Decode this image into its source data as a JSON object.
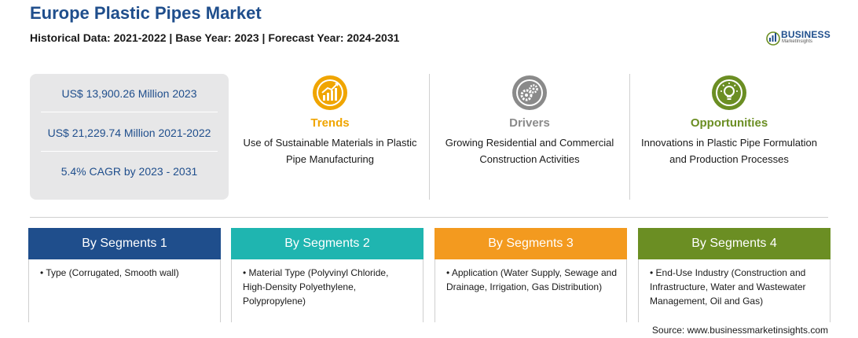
{
  "header": {
    "title": "Europe Plastic Pipes Market",
    "subtitle": "Historical Data: 2021-2022 | Base Year: 2023 | Forecast Year: 2024-2031"
  },
  "logo": {
    "name": "BUSINESS",
    "tagline": "MarketInsights"
  },
  "stats": [
    "US$ 13,900.26 Million 2023",
    "US$ 21,229.74 Million 2021-2022",
    "5.4% CAGR by 2023 - 2031"
  ],
  "columns": [
    {
      "heading": "Trends",
      "text": "Use of Sustainable Materials in Plastic Pipe Manufacturing",
      "color": "#f0a500",
      "icon": "chart-growth-icon"
    },
    {
      "heading": "Drivers",
      "text": "Growing Residential and Commercial Construction Activities",
      "color": "#8a8a8a",
      "icon": "gears-icon"
    },
    {
      "heading": "Opportunities",
      "text": "Innovations in Plastic Pipe Formulation and Production Processes",
      "color": "#6b8e23",
      "icon": "lightbulb-icon"
    }
  ],
  "segments": [
    {
      "heading": "By Segments 1",
      "color": "#1f4e8c",
      "bullet": "•",
      "text": "Type (Corrugated, Smooth wall)"
    },
    {
      "heading": "By Segments 2",
      "color": "#1fb5b0",
      "bullet": "•",
      "text": "Material Type (Polyvinyl Chloride, High-Density Polyethylene, Polypropylene)"
    },
    {
      "heading": "By Segments 3",
      "color": "#f39a1f",
      "bullet": "•",
      "text": "Application (Water Supply, Sewage and Drainage, Irrigation, Gas Distribution)"
    },
    {
      "heading": "By Segments 4",
      "color": "#6b8e23",
      "bullet": "•",
      "text": "End-Use Industry (Construction and Infrastructure, Water and Wastewater Management, Oil and Gas)"
    }
  ],
  "source": "Source: www.businessmarketinsights.com"
}
